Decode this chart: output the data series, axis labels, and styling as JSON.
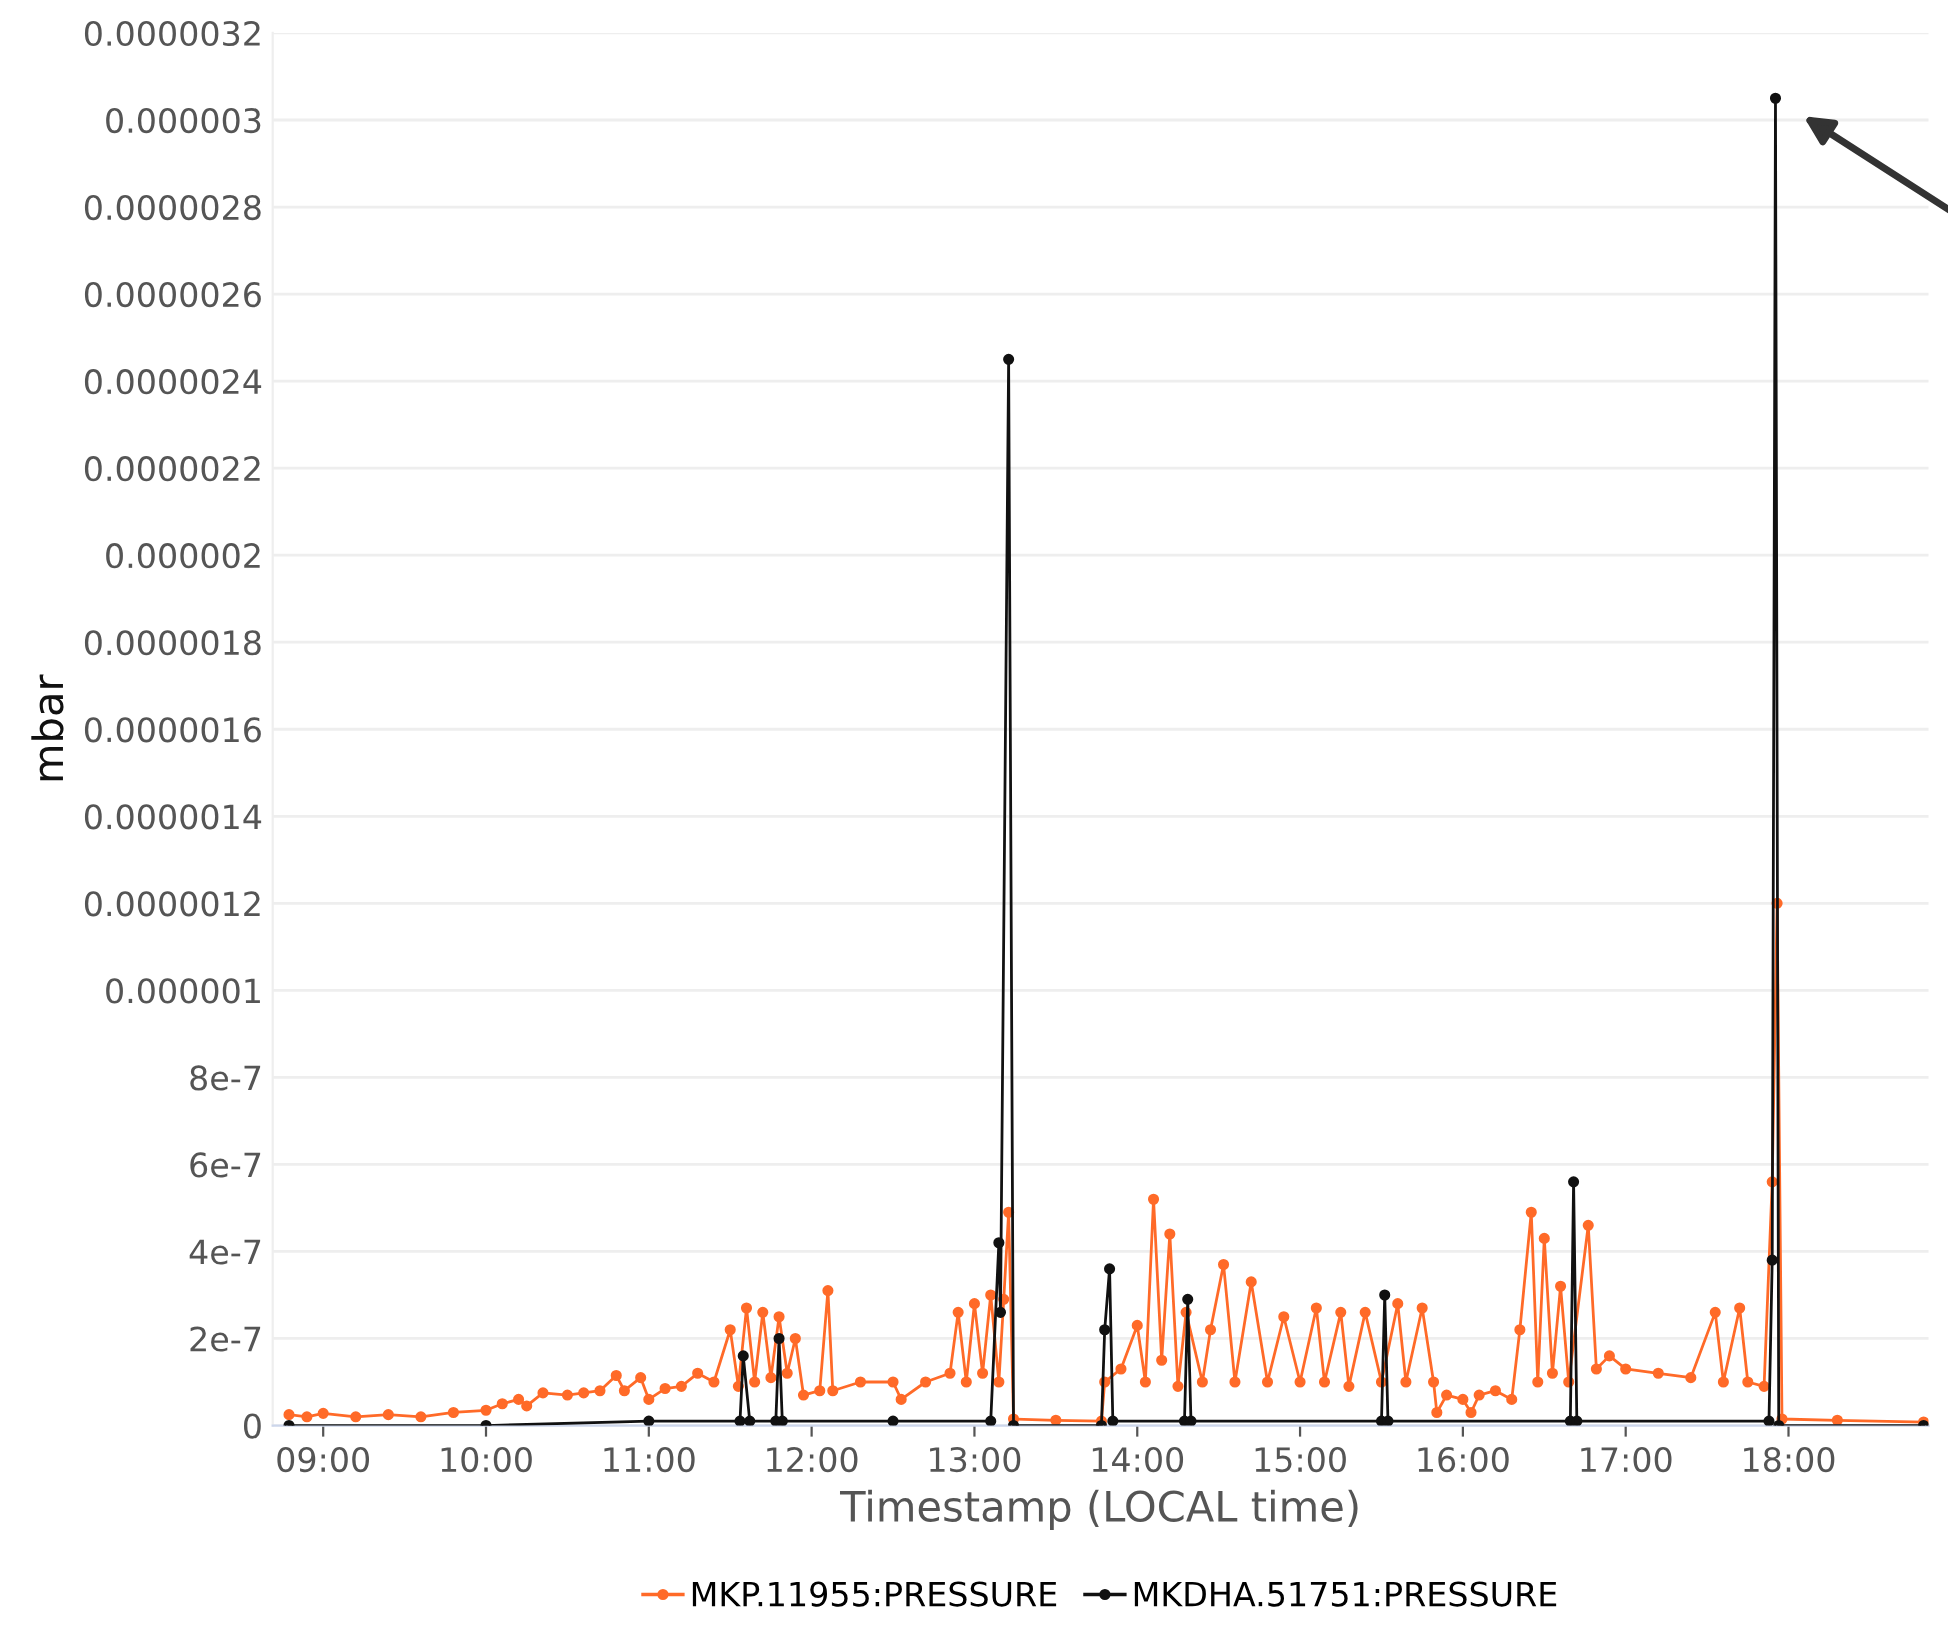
{
  "chart_data": {
    "type": "line",
    "xlabel": "Timestamp (LOCAL time)",
    "ylabel": "mbar",
    "grid": "y",
    "legend": "bottom",
    "marker": "circle",
    "line_style": "solid",
    "xlim": [
      8.69,
      18.86
    ],
    "xticks": [
      {
        "value": 9,
        "label": "09:00"
      },
      {
        "value": 10,
        "label": "10:00"
      },
      {
        "value": 11,
        "label": "11:00"
      },
      {
        "value": 12,
        "label": "12:00"
      },
      {
        "value": 13,
        "label": "13:00"
      },
      {
        "value": 14,
        "label": "14:00"
      },
      {
        "value": 15,
        "label": "15:00"
      },
      {
        "value": 16,
        "label": "16:00"
      },
      {
        "value": 17,
        "label": "17:00"
      },
      {
        "value": 18,
        "label": "18:00"
      }
    ],
    "ylim": [
      0,
      3.2e-06
    ],
    "yticks": [
      {
        "value": 0,
        "label": "0"
      },
      {
        "value": 2e-07,
        "label": "2e-7"
      },
      {
        "value": 4e-07,
        "label": "4e-7"
      },
      {
        "value": 6e-07,
        "label": "6e-7"
      },
      {
        "value": 8e-07,
        "label": "8e-7"
      },
      {
        "value": 1e-06,
        "label": "0.000001"
      },
      {
        "value": 1.2e-06,
        "label": "0.0000012"
      },
      {
        "value": 1.4e-06,
        "label": "0.0000014"
      },
      {
        "value": 1.6e-06,
        "label": "0.0000016"
      },
      {
        "value": 1.8e-06,
        "label": "0.0000018"
      },
      {
        "value": 2e-06,
        "label": "0.000002"
      },
      {
        "value": 2.2e-06,
        "label": "0.0000022"
      },
      {
        "value": 2.4e-06,
        "label": "0.0000024"
      },
      {
        "value": 2.6e-06,
        "label": "0.0000026"
      },
      {
        "value": 2.8e-06,
        "label": "0.0000028"
      },
      {
        "value": 3e-06,
        "label": "0.000003"
      },
      {
        "value": 3.2e-06,
        "label": "0.0000032"
      }
    ],
    "series": [
      {
        "name": "MKP.11955:PRESSURE",
        "color": "#ff6a28",
        "x": [
          8.79,
          8.9,
          9.0,
          9.2,
          9.4,
          9.6,
          9.8,
          10.0,
          10.1,
          10.2,
          10.25,
          10.35,
          10.5,
          10.6,
          10.7,
          10.8,
          10.85,
          10.95,
          11.0,
          11.1,
          11.2,
          11.3,
          11.4,
          11.5,
          11.55,
          11.6,
          11.65,
          11.7,
          11.75,
          11.8,
          11.85,
          11.9,
          11.95,
          12.05,
          12.1,
          12.13,
          12.3,
          12.5,
          12.55,
          12.7,
          12.85,
          12.9,
          12.95,
          13.0,
          13.05,
          13.1,
          13.15,
          13.18,
          13.21,
          13.24,
          13.5,
          13.78,
          13.8,
          13.9,
          14.0,
          14.05,
          14.1,
          14.15,
          14.2,
          14.25,
          14.3,
          14.4,
          14.45,
          14.53,
          14.6,
          14.7,
          14.8,
          14.9,
          15.0,
          15.1,
          15.15,
          15.25,
          15.3,
          15.4,
          15.5,
          15.6,
          15.65,
          15.75,
          15.82,
          15.84,
          15.9,
          16.0,
          16.05,
          16.1,
          16.2,
          16.3,
          16.35,
          16.42,
          16.46,
          16.5,
          16.55,
          16.6,
          16.65,
          16.77,
          16.82,
          16.9,
          17.0,
          17.2,
          17.4,
          17.55,
          17.6,
          17.7,
          17.75,
          17.85,
          17.9,
          17.93,
          17.96,
          18.3,
          18.83
        ],
        "values": [
          2.5e-08,
          2e-08,
          2.8e-08,
          2e-08,
          2.5e-08,
          2e-08,
          3e-08,
          3.5e-08,
          5e-08,
          6e-08,
          4.5e-08,
          7.5e-08,
          7e-08,
          7.5e-08,
          8e-08,
          1.15e-07,
          8e-08,
          1.1e-07,
          6e-08,
          8.5e-08,
          9e-08,
          1.2e-07,
          1e-07,
          2.2e-07,
          9e-08,
          2.7e-07,
          1e-07,
          2.6e-07,
          1.1e-07,
          2.5e-07,
          1.2e-07,
          2e-07,
          7e-08,
          8e-08,
          3.1e-07,
          8e-08,
          1e-07,
          1e-07,
          6e-08,
          1e-07,
          1.2e-07,
          2.6e-07,
          1e-07,
          2.8e-07,
          1.2e-07,
          3e-07,
          1e-07,
          2.9e-07,
          4.9e-07,
          1.5e-08,
          1.2e-08,
          1e-08,
          1e-07,
          1.3e-07,
          2.3e-07,
          1e-07,
          5.2e-07,
          1.5e-07,
          4.4e-07,
          9e-08,
          2.6e-07,
          1e-07,
          2.2e-07,
          3.7e-07,
          1e-07,
          3.3e-07,
          1e-07,
          2.5e-07,
          1e-07,
          2.7e-07,
          1e-07,
          2.6e-07,
          9e-08,
          2.6e-07,
          1e-07,
          2.8e-07,
          1e-07,
          2.7e-07,
          1e-07,
          3e-08,
          7e-08,
          6e-08,
          3e-08,
          7e-08,
          8e-08,
          6e-08,
          2.2e-07,
          4.9e-07,
          1e-07,
          4.3e-07,
          1.2e-07,
          3.2e-07,
          1e-07,
          4.6e-07,
          1.3e-07,
          1.6e-07,
          1.3e-07,
          1.2e-07,
          1.1e-07,
          2.6e-07,
          1e-07,
          2.7e-07,
          1e-07,
          9e-08,
          5.6e-07,
          1.2e-06,
          1.5e-08,
          1.2e-08,
          8e-09
        ]
      },
      {
        "name": "MKDHA.51751:PRESSURE",
        "color": "#111111",
        "x": [
          8.79,
          10.0,
          11.0,
          11.56,
          11.58,
          11.62,
          11.78,
          11.8,
          11.82,
          12.5,
          13.1,
          13.15,
          13.16,
          13.21,
          13.24,
          13.78,
          13.8,
          13.83,
          13.85,
          14.29,
          14.31,
          14.33,
          15.5,
          15.52,
          15.54,
          16.66,
          16.68,
          16.7,
          17.88,
          17.9,
          17.92,
          17.94,
          18.83
        ],
        "values": [
          0,
          0,
          1e-08,
          1e-08,
          1.6e-07,
          1e-08,
          1e-08,
          2e-07,
          1e-08,
          1e-08,
          1e-08,
          4.2e-07,
          2.6e-07,
          2.45e-06,
          0,
          0,
          2.2e-07,
          3.6e-07,
          1e-08,
          1e-08,
          2.9e-07,
          1e-08,
          1e-08,
          3e-07,
          1e-08,
          1e-08,
          5.6e-07,
          1e-08,
          1e-08,
          3.8e-07,
          3.05e-06,
          0,
          0
        ]
      }
    ]
  }
}
